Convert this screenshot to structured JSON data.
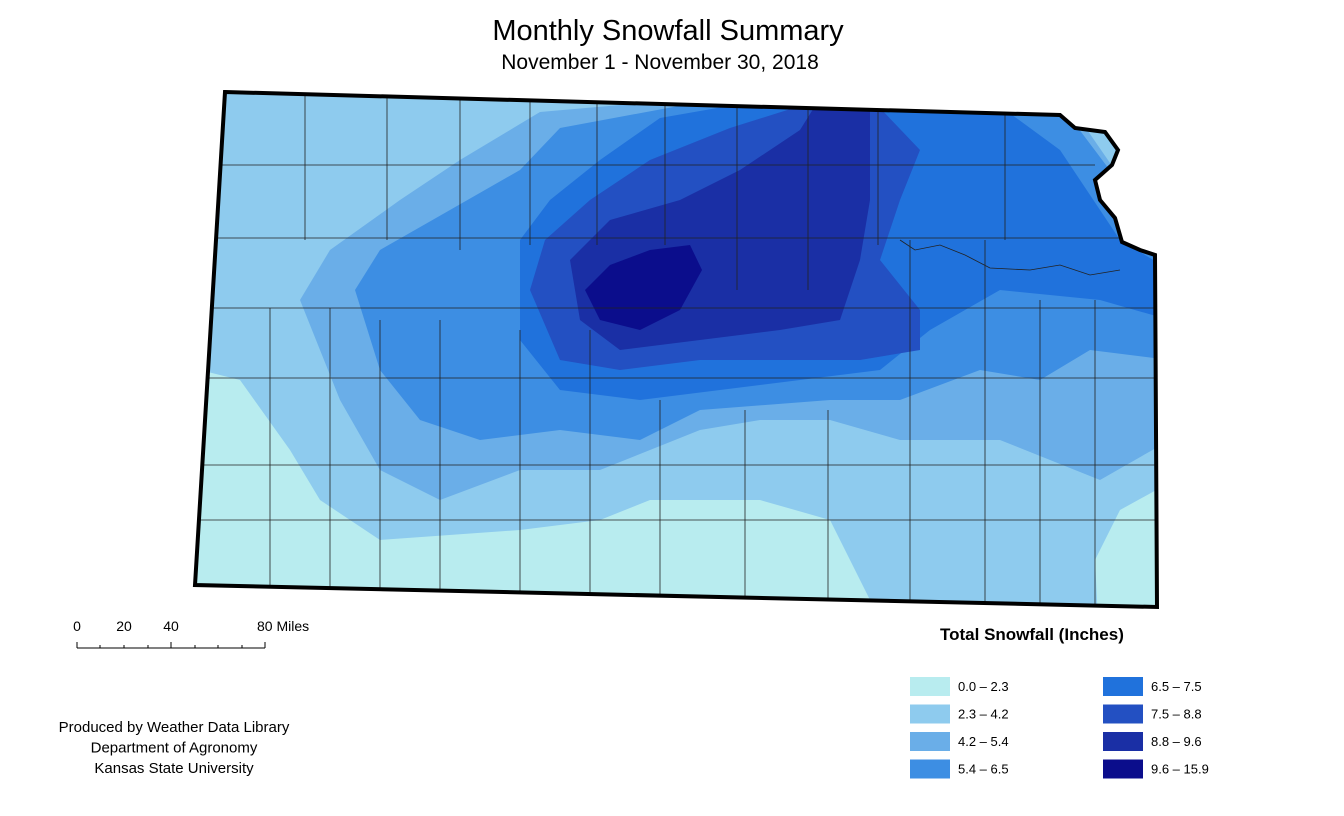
{
  "title": "Monthly Snowfall Summary",
  "subtitle": "November 1 - November 30, 2018",
  "scale_bar": {
    "labels": [
      "0",
      "20",
      "40",
      "80 Miles"
    ]
  },
  "legend": {
    "title": "Total Snowfall (Inches)",
    "items": [
      {
        "label": "0.0 – 2.3",
        "color": "#b8ecef"
      },
      {
        "label": "2.3 – 4.2",
        "color": "#8ecbee"
      },
      {
        "label": "4.2 – 5.4",
        "color": "#6aaee8"
      },
      {
        "label": "5.4 – 6.5",
        "color": "#3d8ee3"
      },
      {
        "label": "6.5 – 7.5",
        "color": "#2072dc"
      },
      {
        "label": "7.5 – 8.8",
        "color": "#2350c2"
      },
      {
        "label": "8.8 – 9.6",
        "color": "#1a2fa5"
      },
      {
        "label": "9.6 – 15.9",
        "color": "#0b0d8c"
      }
    ]
  },
  "credits": [
    "Produced by Weather Data Library",
    "Department of Agronomy",
    "Kansas State University"
  ]
}
